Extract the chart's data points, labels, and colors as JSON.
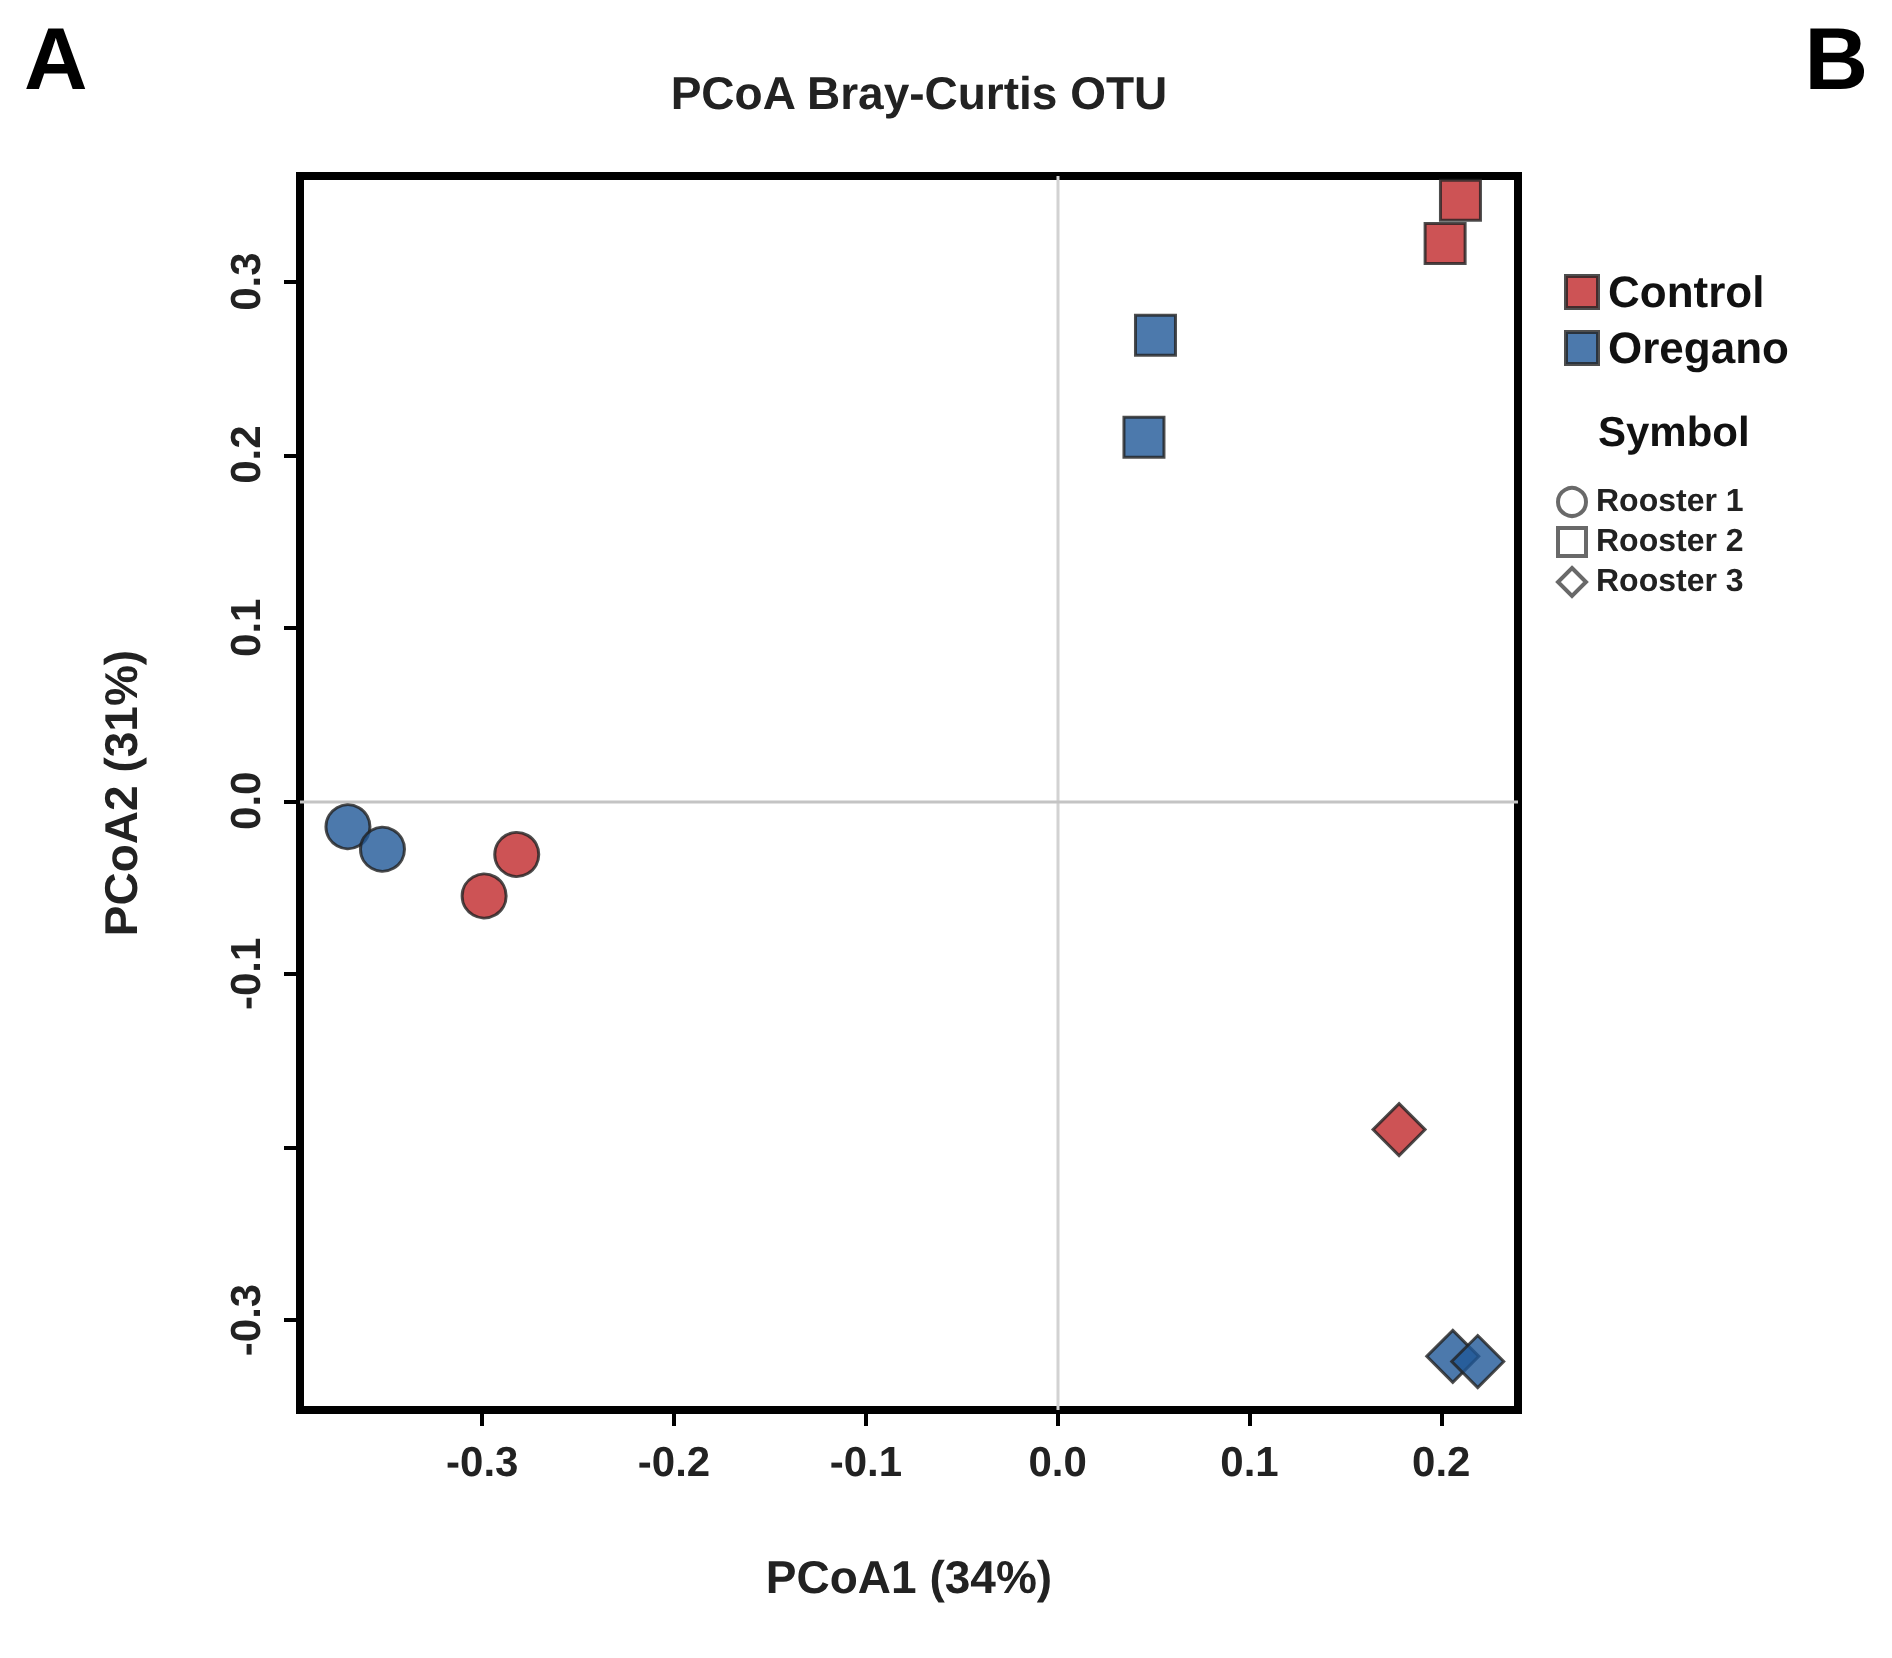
{
  "chart_data": {
    "type": "scatter",
    "title": "PCoA Bray-Curtis OTU",
    "xlabel": "PCoA1 (34%)",
    "ylabel": "PCoA2 (31%)",
    "legend_title": "Symbol",
    "annotations": [
      "A",
      "B"
    ],
    "xlim": [
      -0.395,
      0.24
    ],
    "xticks": [
      -0.3,
      -0.2,
      -0.1,
      {
        "value": 0,
        "label": "0.0"
      },
      0.1,
      0.2
    ],
    "ylim": [
      -0.352,
      0.361
    ],
    "yticks": [
      -0.3,
      {
        "value": -0.2,
        "label": null
      },
      -0.1,
      {
        "value": 0,
        "label": "0.0"
      },
      0.1,
      0.2,
      0.3
    ],
    "grid": false,
    "legend": "right",
    "ref_lines": [
      {
        "axis": "x",
        "value": 0,
        "color": "#d2d2d2"
      },
      {
        "axis": "y",
        "value": 0,
        "color": "#c4c4c4"
      }
    ],
    "series": [
      {
        "name": "Control",
        "color": "#c0282a",
        "x": [
          -0.282,
          -0.299,
          0.21,
          0.202,
          0.178
        ],
        "values": [
          -0.031,
          -0.055,
          0.347,
          0.322,
          -0.19
        ],
        "marker": [
          "circle",
          "circle",
          "square",
          "square",
          "diamond"
        ]
      },
      {
        "name": "Oregano",
        "color": "#1f5797",
        "x": [
          -0.37,
          -0.352,
          0.051,
          0.045,
          0.206,
          0.219
        ],
        "values": [
          -0.015,
          -0.028,
          0.269,
          0.21,
          -0.321,
          -0.324
        ],
        "marker": [
          "circle",
          "circle",
          "square",
          "square",
          "diamond",
          "diamond"
        ]
      },
      {
        "name": "Rooster 1",
        "marker": "circle"
      },
      {
        "name": "Rooster 2",
        "marker": "square"
      },
      {
        "name": "Rooster 3",
        "marker": "diamond"
      }
    ]
  }
}
